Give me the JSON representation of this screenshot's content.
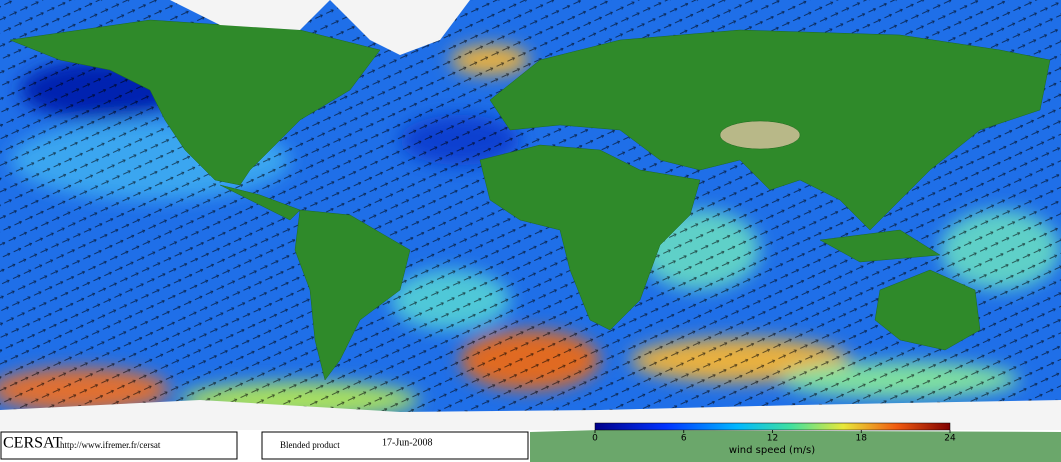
{
  "footer": {
    "logo": "CERSAT",
    "url": "http://www.ifremer.fr/cersat",
    "product": "Blended product",
    "date": "17-Jun-2008"
  },
  "colorbar": {
    "range": [
      0,
      24
    ],
    "ticks": [
      0,
      6,
      12,
      18,
      24
    ],
    "label": "wind speed (m/s)"
  }
}
